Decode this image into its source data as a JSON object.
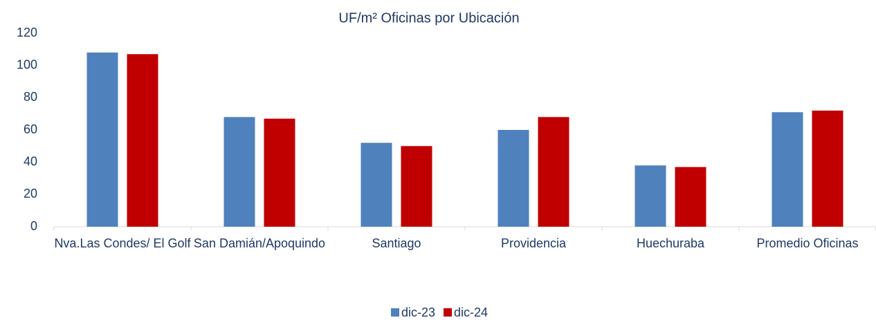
{
  "chart_data": {
    "type": "bar",
    "title": "UF/m² Oficinas por Ubicación",
    "categories": [
      "Nva.Las Condes/ El Golf",
      "San Damián/Apoquindo",
      "Santiago",
      "Providencia",
      "Huechuraba",
      "Promedio Oficinas"
    ],
    "series": [
      {
        "name": "dic-23",
        "color": "#4f81bd",
        "values": [
          108,
          68,
          52,
          60,
          38,
          71
        ]
      },
      {
        "name": "dic-24",
        "color": "#c00000",
        "values": [
          107,
          67,
          50,
          68,
          37,
          72
        ]
      }
    ],
    "ylim": [
      0,
      120
    ],
    "yticks": [
      0,
      20,
      40,
      60,
      80,
      100,
      120
    ],
    "grid": false,
    "legend": "bottom"
  }
}
